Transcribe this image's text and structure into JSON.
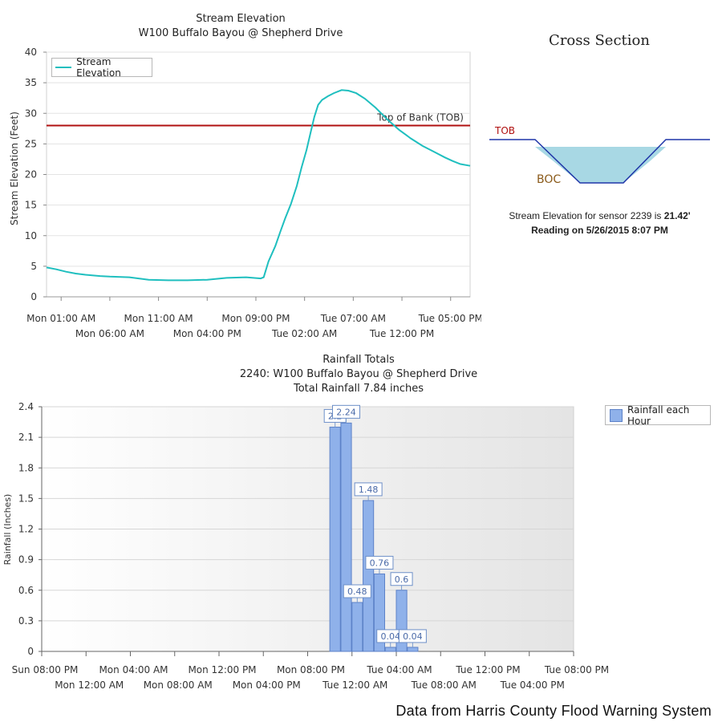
{
  "stream": {
    "title": "Stream Elevation",
    "subtitle": "W100 Buffalo Bayou @ Shepherd Drive",
    "ylabel": "Stream Elevation (Feet)",
    "legend": "Stream Elevation",
    "tob_label": "Top of Bank (TOB)"
  },
  "cross_section": {
    "title": "Cross Section",
    "tob": "TOB",
    "boc": "BOC",
    "reading_prefix": "Stream Elevation for sensor 2239 is ",
    "reading_value": "21.42'",
    "reading_time": "Reading on 5/26/2015 8:07 PM"
  },
  "rain": {
    "title": "Rainfall Totals",
    "subtitle": "2240: W100 Buffalo Bayou @ Shepherd Drive",
    "total": "Total Rainfall 7.84 inches",
    "ylabel": "Rainfall (Inches)",
    "legend": "Rainfall each Hour"
  },
  "footer": "Data from Harris County Flood Warning System",
  "colors": {
    "stream_line": "#1fbfbf",
    "tob_line": "#b01010",
    "bar_fill": "#8fb1ea",
    "bar_stroke": "#5d82c8",
    "water": "#a8d8e4",
    "channel": "#1f35a8"
  },
  "chart_data": [
    {
      "type": "line",
      "title": "Stream Elevation",
      "subtitle": "W100 Buffalo Bayou @ Shepherd Drive",
      "ylabel": "Stream Elevation (Feet)",
      "ylim": [
        0,
        40
      ],
      "yticks": [
        0,
        5,
        10,
        15,
        20,
        25,
        30,
        35,
        40
      ],
      "x_ticks": [
        "Mon 01:00 AM",
        "Mon 06:00 AM",
        "Mon 11:00 AM",
        "Mon 04:00 PM",
        "Mon 09:00 PM",
        "Tue 02:00 AM",
        "Tue 07:00 AM",
        "Tue 12:00 PM",
        "Tue 05:00 PM"
      ],
      "x_hours": {
        "Mon 01:00 AM": 1,
        "Mon 06:00 AM": 6,
        "Mon 11:00 AM": 11,
        "Mon 04:00 PM": 16,
        "Mon 09:00 PM": 21,
        "Tue 02:00 AM": 26,
        "Tue 07:00 AM": 31,
        "Tue 12:00 PM": 36,
        "Tue 05:00 PM": 41
      },
      "xlim_hours": [
        -0.5,
        43
      ],
      "grid": true,
      "legend": "top-left",
      "threshold": {
        "name": "Top of Bank (TOB)",
        "value": 28
      },
      "series": [
        {
          "name": "Stream Elevation",
          "x_hours": [
            -0.5,
            0.5,
            1.5,
            2.5,
            3.5,
            5,
            6,
            8,
            10,
            12,
            14,
            16,
            18,
            20,
            21.5,
            21.8,
            22.3,
            23,
            23.5,
            24,
            24.6,
            25.2,
            25.7,
            26.2,
            26.6,
            27,
            27.4,
            27.8,
            28.4,
            29,
            29.8,
            30.5,
            31.3,
            32.2,
            33.3,
            34.5,
            35.7,
            36.9,
            38.1,
            39.3,
            40.4,
            41.2,
            42,
            43
          ],
          "y": [
            4.8,
            4.5,
            4.1,
            3.8,
            3.6,
            3.4,
            3.3,
            3.2,
            2.8,
            2.7,
            2.7,
            2.8,
            3.1,
            3.2,
            3.0,
            3.2,
            5.8,
            8.3,
            10.6,
            12.8,
            15.2,
            18.1,
            21.2,
            24.0,
            26.7,
            29.4,
            31.4,
            32.2,
            32.8,
            33.3,
            33.8,
            33.7,
            33.3,
            32.4,
            30.9,
            29.0,
            27.3,
            25.9,
            24.7,
            23.7,
            22.8,
            22.2,
            21.7,
            21.42
          ]
        }
      ]
    },
    {
      "type": "bar",
      "title": "Rainfall Totals",
      "subtitle": "2240: W100 Buffalo Bayou @ Shepherd Drive",
      "ylabel": "Rainfall (Inches)",
      "ylim": [
        0,
        2.4
      ],
      "yticks": [
        0,
        0.3,
        0.6,
        0.9,
        1.2,
        1.5,
        1.8,
        2.1,
        2.4
      ],
      "x_ticks": [
        "Sun 08:00 PM",
        "Mon 12:00 AM",
        "Mon 04:00 AM",
        "Mon 08:00 AM",
        "Mon 12:00 PM",
        "Mon 04:00 PM",
        "Mon 08:00 PM",
        "Tue 12:00 AM",
        "Tue 04:00 AM",
        "Tue 08:00 AM",
        "Tue 12:00 PM",
        "Tue 04:00 PM",
        "Tue 08:00 PM"
      ],
      "xlim_hours": [
        0,
        48
      ],
      "grid": true,
      "legend": "top-right",
      "series": [
        {
          "name": "Rainfall each Hour",
          "x_hours": [
            26,
            27,
            28,
            29,
            30,
            31,
            32,
            33
          ],
          "values": [
            2.2,
            2.24,
            0.48,
            1.48,
            0.76,
            0.04,
            0.6,
            0.04
          ],
          "labels": [
            "2.2",
            "2.24",
            "0.48",
            "1.48",
            "0.76",
            "0.04",
            "0.6",
            "0.04"
          ]
        }
      ]
    }
  ]
}
